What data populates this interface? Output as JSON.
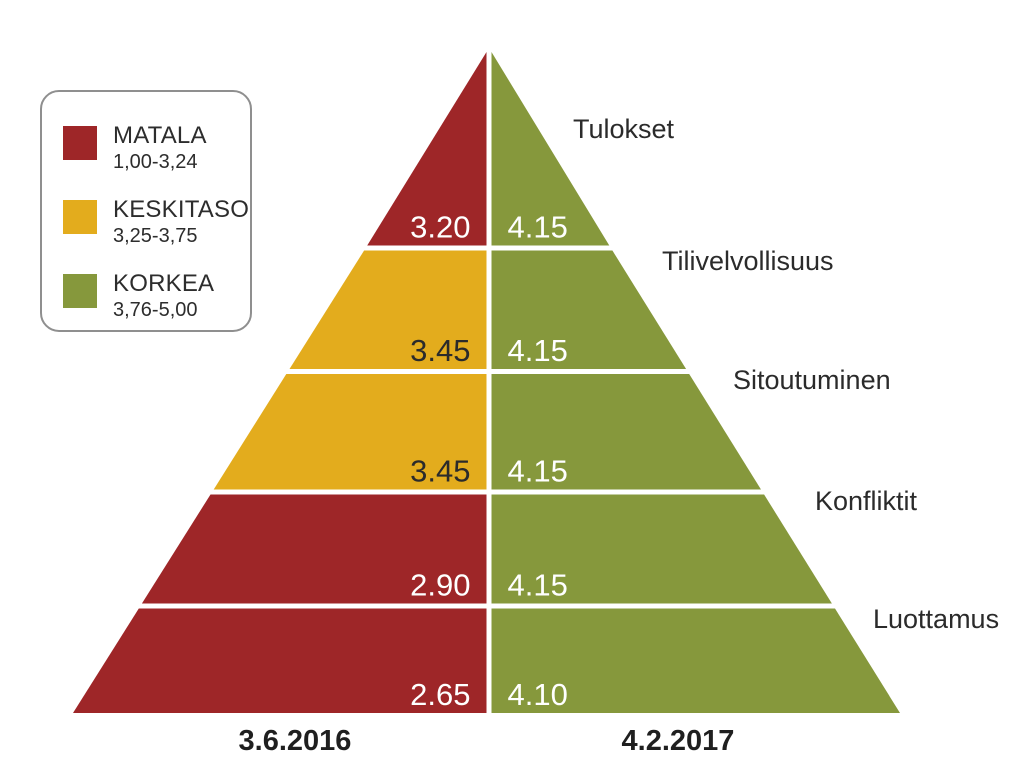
{
  "figure": {
    "background": "#FFFFFF",
    "text_color": "#2B2B2B",
    "date_text_color": "#1F1F1F"
  },
  "legend": {
    "border_color": "#8F8F8F",
    "items": [
      {
        "key": "matala",
        "name": "MATALA",
        "range": "1,00-3,24",
        "color": "#9E2628"
      },
      {
        "key": "keskitaso",
        "name": "KESKITASO",
        "range": "3,25-3,75",
        "color": "#E3AC1D"
      },
      {
        "key": "korkea",
        "name": "KORKEA",
        "range": "3,76-5,00",
        "color": "#86983C"
      }
    ]
  },
  "chart_data": {
    "type": "pyramid",
    "title": "",
    "description": "Split five-level pyramid comparing team scores measured on 3.6.2016 (left half) and 4.2.2017 (right half); segment color encodes score band (MATALA red, KESKITASO yellow, KORKEA green) on a 1.00-5.00 scale.",
    "scale": {
      "min": 1.0,
      "max": 5.0
    },
    "thresholds": {
      "matala_max": 3.24,
      "keskitaso_max": 3.75
    },
    "columns": [
      {
        "side": "left",
        "date": "3.6.2016"
      },
      {
        "side": "right",
        "date": "4.2.2017"
      }
    ],
    "levels": [
      {
        "label": "Tulokset",
        "left": 3.2,
        "right": 4.15
      },
      {
        "label": "Tilivelvollisuus",
        "left": 3.45,
        "right": 4.15
      },
      {
        "label": "Sitoutuminen",
        "left": 3.45,
        "right": 4.15
      },
      {
        "label": "Konfliktit",
        "left": 2.9,
        "right": 4.15
      },
      {
        "label": "Luottamus",
        "left": 2.65,
        "right": 4.1
      }
    ],
    "value_text_colors": {
      "matala": "#FFFFFF",
      "keskitaso": "#2B2B2B",
      "korkea": "#FFFFFF"
    }
  }
}
